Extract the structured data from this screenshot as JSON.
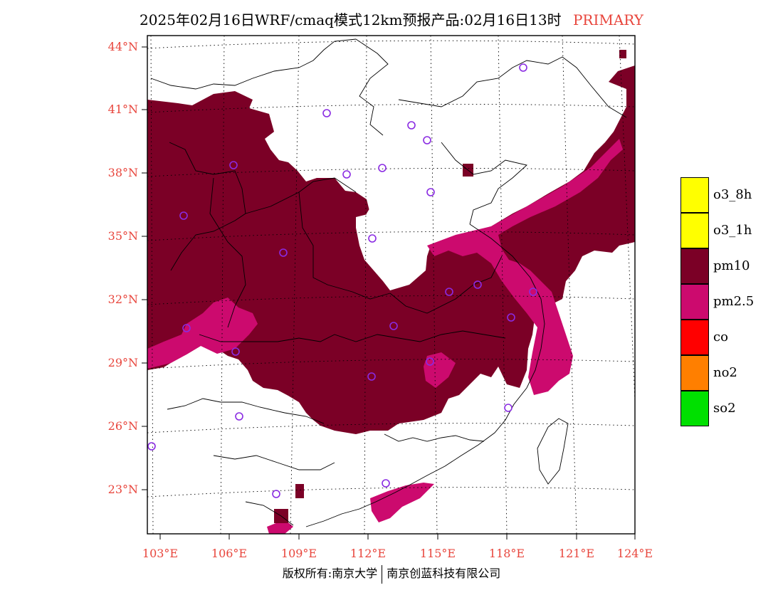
{
  "title": {
    "text": "2025年02月16日WRF/cmaq模式12km预报产品:02月16日13时",
    "product": "PRIMARY"
  },
  "axes": {
    "lat_labels": [
      "44°N",
      "41°N",
      "38°N",
      "35°N",
      "32°N",
      "29°N",
      "26°N",
      "23°N"
    ],
    "lon_labels": [
      "103°E",
      "106°E",
      "109°E",
      "112°E",
      "115°E",
      "118°E",
      "121°E",
      "124°E"
    ],
    "lat_range": [
      21,
      44.5
    ],
    "lon_range": [
      102.7,
      124
    ]
  },
  "legend": {
    "items": [
      {
        "label": "o3_8h",
        "color": "#ffff00"
      },
      {
        "label": "o3_1h",
        "color": "#ffff00"
      },
      {
        "label": "pm10",
        "color": "#7b0026"
      },
      {
        "label": "pm2.5",
        "color": "#cc0a6e"
      },
      {
        "label": "co",
        "color": "#ff0000"
      },
      {
        "label": "no2",
        "color": "#ff7f00"
      },
      {
        "label": "so2",
        "color": "#00e000"
      }
    ]
  },
  "copyright": {
    "left": "版权所有:南京大学",
    "right": "南京创蓝科技有限公司"
  }
}
